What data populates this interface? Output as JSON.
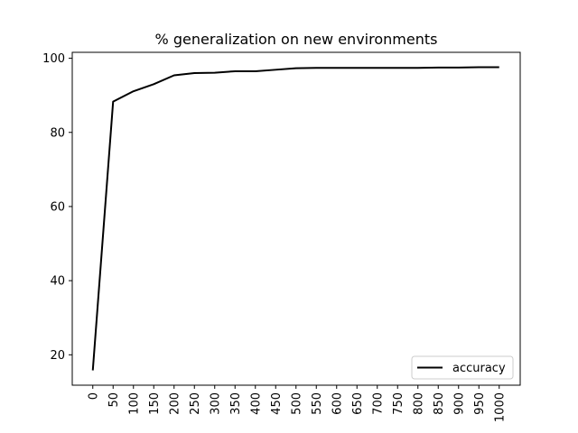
{
  "chart_data": {
    "type": "line",
    "title": "% generalization on new environments",
    "xlabel": "",
    "ylabel": "",
    "categories": [
      "0",
      "50",
      "100",
      "150",
      "200",
      "250",
      "300",
      "350",
      "400",
      "450",
      "500",
      "550",
      "600",
      "650",
      "700",
      "750",
      "800",
      "850",
      "900",
      "950",
      "1000"
    ],
    "series": [
      {
        "name": "accuracy",
        "values": [
          15.8,
          88.3,
          91.1,
          93.0,
          95.4,
          96.0,
          96.1,
          96.5,
          96.5,
          96.9,
          97.3,
          97.4,
          97.4,
          97.4,
          97.4,
          97.4,
          97.4,
          97.5,
          97.5,
          97.6,
          97.6
        ],
        "color": "#000000"
      }
    ],
    "yticks": [
      20,
      40,
      60,
      80,
      100
    ],
    "ylim": [
      11.8,
      101.6
    ],
    "legend": "lower-right",
    "grid": false
  }
}
